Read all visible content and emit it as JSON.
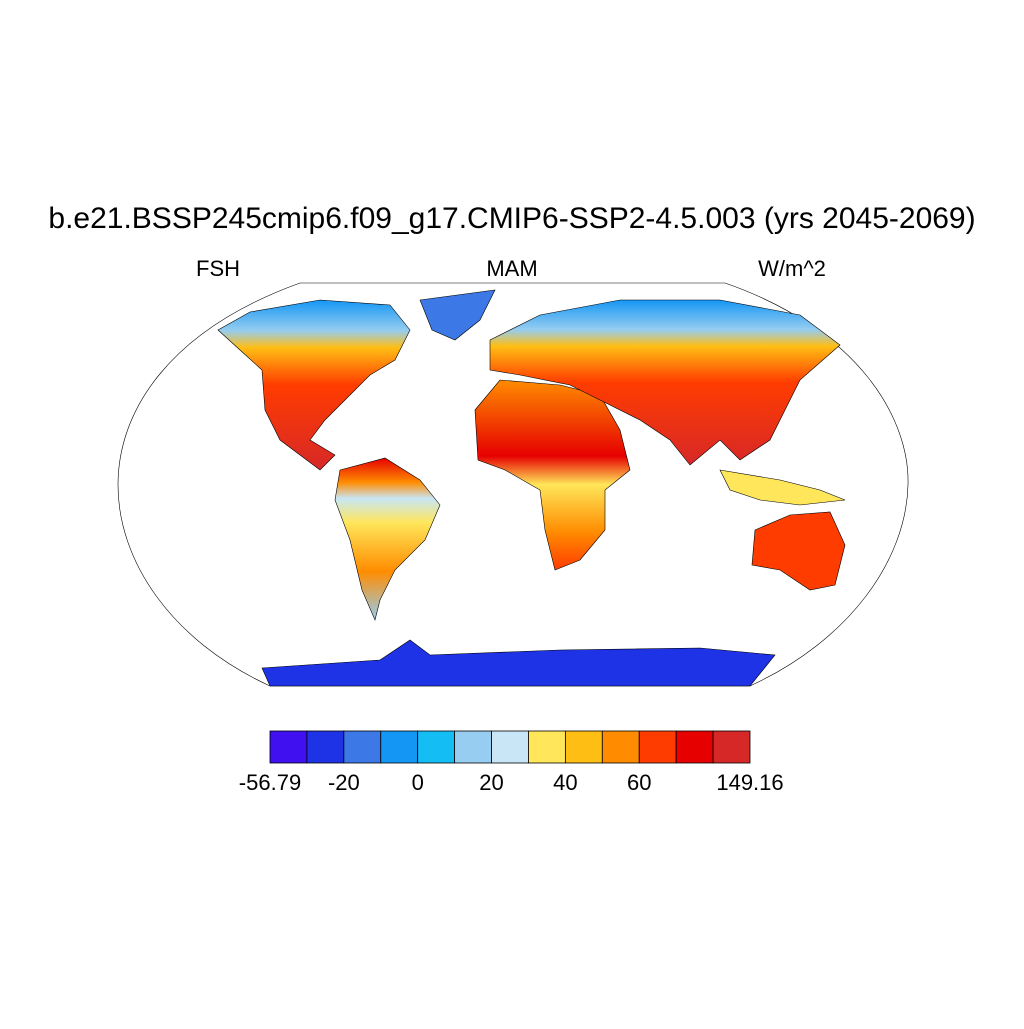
{
  "title": "b.e21.BSSP245cmip6.f09_g17.CMIP6-SSP2-4.5.003 (yrs 2045-2069)",
  "left_subtitle": "FSH",
  "center_subtitle": "MAM",
  "right_subtitle": "W/m^2",
  "colorbar": {
    "colors": [
      "#4010f0",
      "#1e32e6",
      "#3c78e6",
      "#1496f5",
      "#14bef5",
      "#96cdf0",
      "#c8e6f5",
      "#ffe65a",
      "#ffbe14",
      "#ff8c00",
      "#ff3c00",
      "#e60000",
      "#d72828"
    ],
    "labels": [
      -56.79,
      null,
      -20,
      null,
      0,
      null,
      20,
      null,
      40,
      null,
      60,
      null,
      null,
      149.16
    ]
  }
}
